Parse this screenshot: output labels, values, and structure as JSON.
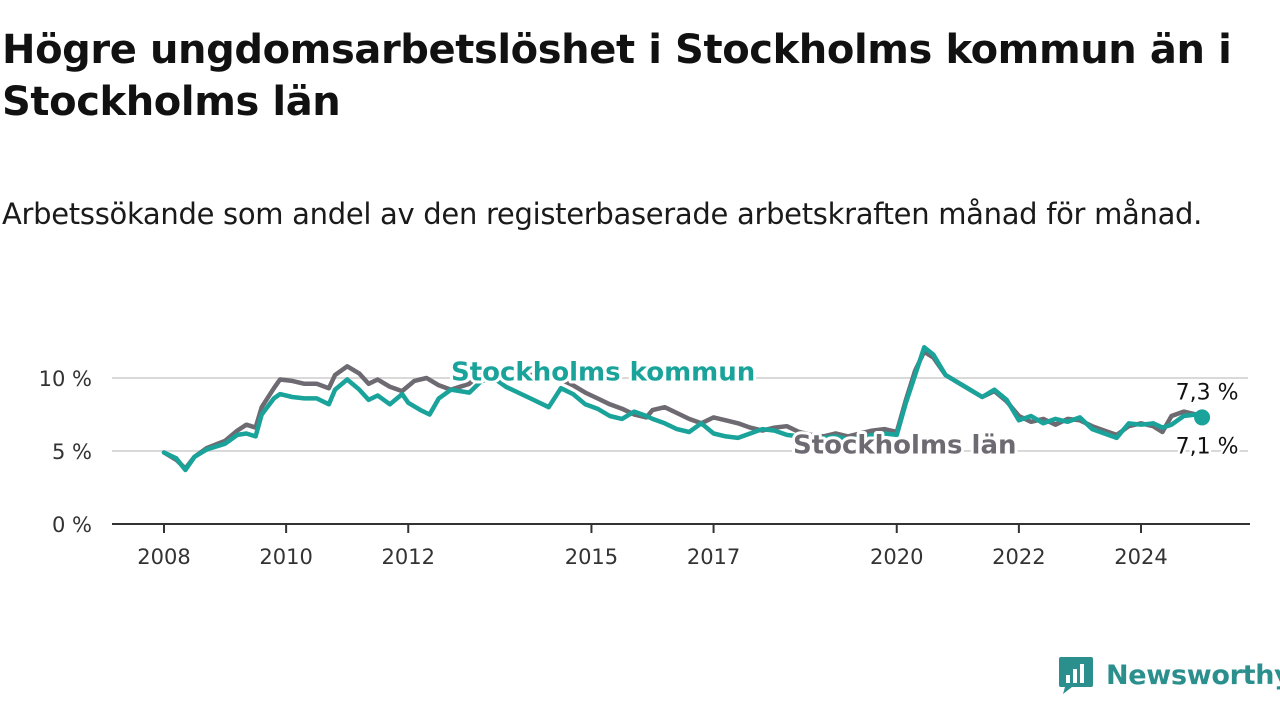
{
  "title": "Högre ungdomsarbetslöshet i Stockholms kommun än i Stockholms län",
  "subtitle": "Arbetssökande som andel av den registerbaserade arbetskraften månad för månad.",
  "brand": "Newsworthy",
  "colors": {
    "kommun": "#1aa39a",
    "lan": "#6e6a72",
    "grid": "#d9d9d9",
    "axis": "#333333",
    "brand": "#2a8f8d"
  },
  "chart_data": {
    "type": "line",
    "ylim": [
      0,
      12
    ],
    "y_ticks": [
      {
        "value": 0,
        "label": "0 %"
      },
      {
        "value": 5,
        "label": "5 %"
      },
      {
        "value": 10,
        "label": "10 %"
      }
    ],
    "x_ticks": [
      {
        "value": 2008,
        "label": "2008"
      },
      {
        "value": 2010,
        "label": "2010"
      },
      {
        "value": 2012,
        "label": "2012"
      },
      {
        "value": 2015,
        "label": "2015"
      },
      {
        "value": 2017,
        "label": "2017"
      },
      {
        "value": 2020,
        "label": "2020"
      },
      {
        "value": 2022,
        "label": "2022"
      },
      {
        "value": 2024,
        "label": "2024"
      }
    ],
    "series": [
      {
        "name": "Stockholms län",
        "key": "lan",
        "end_label": "7,1 %",
        "points": [
          [
            2008.0,
            4.9
          ],
          [
            2008.2,
            4.4
          ],
          [
            2008.35,
            3.8
          ],
          [
            2008.5,
            4.6
          ],
          [
            2008.7,
            5.2
          ],
          [
            2009.0,
            5.7
          ],
          [
            2009.2,
            6.4
          ],
          [
            2009.35,
            6.8
          ],
          [
            2009.5,
            6.6
          ],
          [
            2009.6,
            8.0
          ],
          [
            2009.8,
            9.3
          ],
          [
            2009.9,
            9.9
          ],
          [
            2010.1,
            9.8
          ],
          [
            2010.3,
            9.6
          ],
          [
            2010.5,
            9.6
          ],
          [
            2010.7,
            9.3
          ],
          [
            2010.8,
            10.2
          ],
          [
            2011.0,
            10.8
          ],
          [
            2011.2,
            10.3
          ],
          [
            2011.35,
            9.6
          ],
          [
            2011.5,
            9.9
          ],
          [
            2011.7,
            9.4
          ],
          [
            2011.9,
            9.1
          ],
          [
            2012.1,
            9.8
          ],
          [
            2012.3,
            10.0
          ],
          [
            2012.5,
            9.5
          ],
          [
            2012.7,
            9.2
          ],
          [
            2013.0,
            9.6
          ],
          [
            2013.2,
            10.4
          ],
          [
            2013.4,
            10.7
          ],
          [
            2013.6,
            10.1
          ],
          [
            2013.8,
            9.8
          ],
          [
            2014.0,
            10.2
          ],
          [
            2014.3,
            10.4
          ],
          [
            2014.5,
            9.9
          ],
          [
            2014.7,
            9.5
          ],
          [
            2014.9,
            9.0
          ],
          [
            2015.1,
            8.6
          ],
          [
            2015.3,
            8.2
          ],
          [
            2015.5,
            7.9
          ],
          [
            2015.7,
            7.5
          ],
          [
            2015.9,
            7.3
          ],
          [
            2016.0,
            7.8
          ],
          [
            2016.2,
            8.0
          ],
          [
            2016.4,
            7.6
          ],
          [
            2016.6,
            7.2
          ],
          [
            2016.8,
            6.9
          ],
          [
            2017.0,
            7.3
          ],
          [
            2017.2,
            7.1
          ],
          [
            2017.4,
            6.9
          ],
          [
            2017.6,
            6.6
          ],
          [
            2017.8,
            6.4
          ],
          [
            2018.0,
            6.6
          ],
          [
            2018.2,
            6.7
          ],
          [
            2018.4,
            6.3
          ],
          [
            2018.6,
            6.1
          ],
          [
            2018.8,
            6.0
          ],
          [
            2019.0,
            6.2
          ],
          [
            2019.2,
            6.0
          ],
          [
            2019.4,
            6.2
          ],
          [
            2019.6,
            6.4
          ],
          [
            2019.8,
            6.5
          ],
          [
            2020.0,
            6.3
          ],
          [
            2020.15,
            8.5
          ],
          [
            2020.3,
            10.5
          ],
          [
            2020.45,
            11.8
          ],
          [
            2020.6,
            11.4
          ],
          [
            2020.8,
            10.2
          ],
          [
            2021.0,
            9.7
          ],
          [
            2021.2,
            9.2
          ],
          [
            2021.4,
            8.7
          ],
          [
            2021.6,
            9.1
          ],
          [
            2021.8,
            8.4
          ],
          [
            2022.0,
            7.4
          ],
          [
            2022.2,
            7.0
          ],
          [
            2022.4,
            7.2
          ],
          [
            2022.6,
            6.8
          ],
          [
            2022.8,
            7.2
          ],
          [
            2023.0,
            7.1
          ],
          [
            2023.2,
            6.7
          ],
          [
            2023.4,
            6.4
          ],
          [
            2023.6,
            6.1
          ],
          [
            2023.8,
            6.7
          ],
          [
            2024.0,
            6.9
          ],
          [
            2024.2,
            6.7
          ],
          [
            2024.35,
            6.3
          ],
          [
            2024.5,
            7.4
          ],
          [
            2024.7,
            7.7
          ],
          [
            2024.9,
            7.5
          ],
          [
            2025.0,
            7.1
          ]
        ]
      },
      {
        "name": "Stockholms kommun",
        "key": "kommun",
        "end_label": "7,3 %",
        "points": [
          [
            2008.0,
            4.9
          ],
          [
            2008.2,
            4.5
          ],
          [
            2008.35,
            3.7
          ],
          [
            2008.5,
            4.6
          ],
          [
            2008.7,
            5.1
          ],
          [
            2009.0,
            5.5
          ],
          [
            2009.2,
            6.1
          ],
          [
            2009.35,
            6.2
          ],
          [
            2009.5,
            6.0
          ],
          [
            2009.6,
            7.5
          ],
          [
            2009.8,
            8.6
          ],
          [
            2009.9,
            8.9
          ],
          [
            2010.1,
            8.7
          ],
          [
            2010.3,
            8.6
          ],
          [
            2010.5,
            8.6
          ],
          [
            2010.7,
            8.2
          ],
          [
            2010.8,
            9.2
          ],
          [
            2011.0,
            9.9
          ],
          [
            2011.2,
            9.2
          ],
          [
            2011.35,
            8.5
          ],
          [
            2011.5,
            8.8
          ],
          [
            2011.7,
            8.2
          ],
          [
            2011.9,
            8.9
          ],
          [
            2012.0,
            8.3
          ],
          [
            2012.2,
            7.8
          ],
          [
            2012.35,
            7.5
          ],
          [
            2012.5,
            8.6
          ],
          [
            2012.7,
            9.2
          ],
          [
            2013.0,
            9.0
          ],
          [
            2013.2,
            9.8
          ],
          [
            2013.4,
            10.0
          ],
          [
            2013.6,
            9.4
          ],
          [
            2013.8,
            9.0
          ],
          [
            2014.0,
            8.6
          ],
          [
            2014.3,
            8.0
          ],
          [
            2014.5,
            9.3
          ],
          [
            2014.7,
            8.9
          ],
          [
            2014.9,
            8.2
          ],
          [
            2015.1,
            7.9
          ],
          [
            2015.3,
            7.4
          ],
          [
            2015.5,
            7.2
          ],
          [
            2015.7,
            7.7
          ],
          [
            2015.9,
            7.4
          ],
          [
            2016.0,
            7.2
          ],
          [
            2016.2,
            6.9
          ],
          [
            2016.4,
            6.5
          ],
          [
            2016.6,
            6.3
          ],
          [
            2016.8,
            6.9
          ],
          [
            2017.0,
            6.2
          ],
          [
            2017.2,
            6.0
          ],
          [
            2017.4,
            5.9
          ],
          [
            2017.6,
            6.2
          ],
          [
            2017.8,
            6.5
          ],
          [
            2018.0,
            6.4
          ],
          [
            2018.2,
            6.1
          ],
          [
            2018.4,
            6.0
          ],
          [
            2018.6,
            5.8
          ],
          [
            2018.8,
            5.9
          ],
          [
            2019.0,
            6.0
          ],
          [
            2019.2,
            5.8
          ],
          [
            2019.4,
            5.9
          ],
          [
            2019.6,
            6.1
          ],
          [
            2019.8,
            6.2
          ],
          [
            2020.0,
            6.1
          ],
          [
            2020.15,
            8.3
          ],
          [
            2020.3,
            10.2
          ],
          [
            2020.45,
            12.1
          ],
          [
            2020.6,
            11.6
          ],
          [
            2020.8,
            10.2
          ],
          [
            2021.0,
            9.7
          ],
          [
            2021.2,
            9.2
          ],
          [
            2021.4,
            8.7
          ],
          [
            2021.6,
            9.2
          ],
          [
            2021.8,
            8.5
          ],
          [
            2022.0,
            7.1
          ],
          [
            2022.2,
            7.4
          ],
          [
            2022.4,
            6.9
          ],
          [
            2022.6,
            7.2
          ],
          [
            2022.8,
            7.0
          ],
          [
            2023.0,
            7.3
          ],
          [
            2023.2,
            6.5
          ],
          [
            2023.4,
            6.2
          ],
          [
            2023.6,
            5.9
          ],
          [
            2023.8,
            6.9
          ],
          [
            2024.0,
            6.8
          ],
          [
            2024.2,
            6.9
          ],
          [
            2024.35,
            6.6
          ],
          [
            2024.5,
            6.8
          ],
          [
            2024.7,
            7.4
          ],
          [
            2024.9,
            7.5
          ],
          [
            2025.0,
            7.3
          ]
        ]
      }
    ],
    "series_labels": [
      {
        "key": "kommun",
        "text": "Stockholms kommun",
        "x": 2012.7,
        "y": 10.5
      },
      {
        "key": "lan",
        "text": "Stockholms län",
        "x": 2018.3,
        "y": 5.5
      }
    ]
  }
}
